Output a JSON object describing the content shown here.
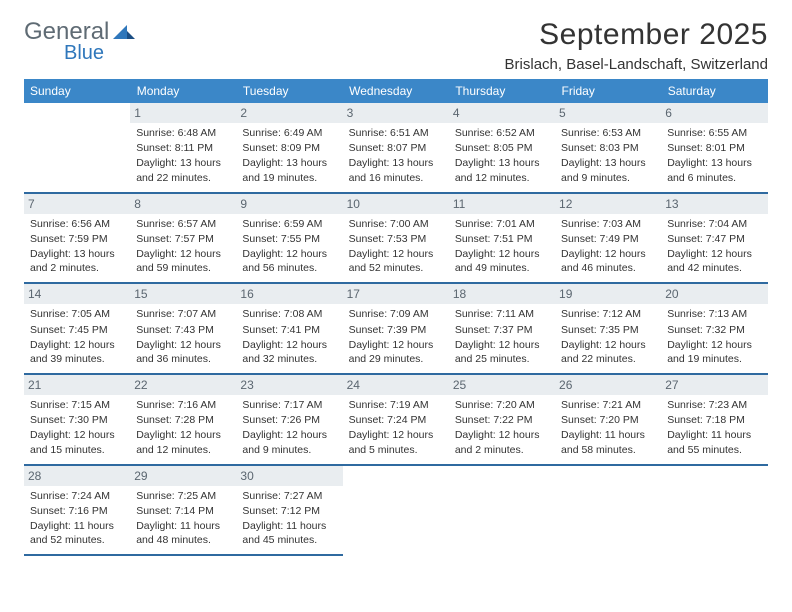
{
  "logo": {
    "text_a": "General",
    "text_b": "Blue"
  },
  "title": "September 2025",
  "location": "Brislach, Basel-Landschaft, Switzerland",
  "colors": {
    "header_bg": "#3b87c8",
    "header_text": "#ffffff",
    "daynum_bg": "#e9edf0",
    "daynum_text": "#5b6670",
    "row_border": "#2f6aa0",
    "logo_gray": "#5f6b74",
    "logo_blue": "#2f77bb"
  },
  "day_headers": [
    "Sunday",
    "Monday",
    "Tuesday",
    "Wednesday",
    "Thursday",
    "Friday",
    "Saturday"
  ],
  "weeks": [
    [
      null,
      {
        "n": "1",
        "sunrise": "6:48 AM",
        "sunset": "8:11 PM",
        "daylight": "13 hours and 22 minutes."
      },
      {
        "n": "2",
        "sunrise": "6:49 AM",
        "sunset": "8:09 PM",
        "daylight": "13 hours and 19 minutes."
      },
      {
        "n": "3",
        "sunrise": "6:51 AM",
        "sunset": "8:07 PM",
        "daylight": "13 hours and 16 minutes."
      },
      {
        "n": "4",
        "sunrise": "6:52 AM",
        "sunset": "8:05 PM",
        "daylight": "13 hours and 12 minutes."
      },
      {
        "n": "5",
        "sunrise": "6:53 AM",
        "sunset": "8:03 PM",
        "daylight": "13 hours and 9 minutes."
      },
      {
        "n": "6",
        "sunrise": "6:55 AM",
        "sunset": "8:01 PM",
        "daylight": "13 hours and 6 minutes."
      }
    ],
    [
      {
        "n": "7",
        "sunrise": "6:56 AM",
        "sunset": "7:59 PM",
        "daylight": "13 hours and 2 minutes."
      },
      {
        "n": "8",
        "sunrise": "6:57 AM",
        "sunset": "7:57 PM",
        "daylight": "12 hours and 59 minutes."
      },
      {
        "n": "9",
        "sunrise": "6:59 AM",
        "sunset": "7:55 PM",
        "daylight": "12 hours and 56 minutes."
      },
      {
        "n": "10",
        "sunrise": "7:00 AM",
        "sunset": "7:53 PM",
        "daylight": "12 hours and 52 minutes."
      },
      {
        "n": "11",
        "sunrise": "7:01 AM",
        "sunset": "7:51 PM",
        "daylight": "12 hours and 49 minutes."
      },
      {
        "n": "12",
        "sunrise": "7:03 AM",
        "sunset": "7:49 PM",
        "daylight": "12 hours and 46 minutes."
      },
      {
        "n": "13",
        "sunrise": "7:04 AM",
        "sunset": "7:47 PM",
        "daylight": "12 hours and 42 minutes."
      }
    ],
    [
      {
        "n": "14",
        "sunrise": "7:05 AM",
        "sunset": "7:45 PM",
        "daylight": "12 hours and 39 minutes."
      },
      {
        "n": "15",
        "sunrise": "7:07 AM",
        "sunset": "7:43 PM",
        "daylight": "12 hours and 36 minutes."
      },
      {
        "n": "16",
        "sunrise": "7:08 AM",
        "sunset": "7:41 PM",
        "daylight": "12 hours and 32 minutes."
      },
      {
        "n": "17",
        "sunrise": "7:09 AM",
        "sunset": "7:39 PM",
        "daylight": "12 hours and 29 minutes."
      },
      {
        "n": "18",
        "sunrise": "7:11 AM",
        "sunset": "7:37 PM",
        "daylight": "12 hours and 25 minutes."
      },
      {
        "n": "19",
        "sunrise": "7:12 AM",
        "sunset": "7:35 PM",
        "daylight": "12 hours and 22 minutes."
      },
      {
        "n": "20",
        "sunrise": "7:13 AM",
        "sunset": "7:32 PM",
        "daylight": "12 hours and 19 minutes."
      }
    ],
    [
      {
        "n": "21",
        "sunrise": "7:15 AM",
        "sunset": "7:30 PM",
        "daylight": "12 hours and 15 minutes."
      },
      {
        "n": "22",
        "sunrise": "7:16 AM",
        "sunset": "7:28 PM",
        "daylight": "12 hours and 12 minutes."
      },
      {
        "n": "23",
        "sunrise": "7:17 AM",
        "sunset": "7:26 PM",
        "daylight": "12 hours and 9 minutes."
      },
      {
        "n": "24",
        "sunrise": "7:19 AM",
        "sunset": "7:24 PM",
        "daylight": "12 hours and 5 minutes."
      },
      {
        "n": "25",
        "sunrise": "7:20 AM",
        "sunset": "7:22 PM",
        "daylight": "12 hours and 2 minutes."
      },
      {
        "n": "26",
        "sunrise": "7:21 AM",
        "sunset": "7:20 PM",
        "daylight": "11 hours and 58 minutes."
      },
      {
        "n": "27",
        "sunrise": "7:23 AM",
        "sunset": "7:18 PM",
        "daylight": "11 hours and 55 minutes."
      }
    ],
    [
      {
        "n": "28",
        "sunrise": "7:24 AM",
        "sunset": "7:16 PM",
        "daylight": "11 hours and 52 minutes."
      },
      {
        "n": "29",
        "sunrise": "7:25 AM",
        "sunset": "7:14 PM",
        "daylight": "11 hours and 48 minutes."
      },
      {
        "n": "30",
        "sunrise": "7:27 AM",
        "sunset": "7:12 PM",
        "daylight": "11 hours and 45 minutes."
      },
      null,
      null,
      null,
      null
    ]
  ],
  "labels": {
    "sunrise": "Sunrise:",
    "sunset": "Sunset:",
    "daylight": "Daylight:"
  }
}
